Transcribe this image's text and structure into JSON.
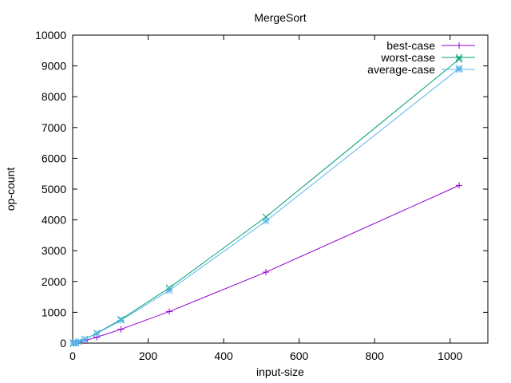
{
  "chart_data": {
    "type": "line",
    "title": "MergeSort",
    "xlabel": "input-size",
    "ylabel": "op-count",
    "xlim": [
      0,
      1100
    ],
    "ylim": [
      0,
      10000
    ],
    "xticks": [
      0,
      200,
      400,
      600,
      800,
      1000
    ],
    "yticks": [
      0,
      1000,
      2000,
      3000,
      4000,
      5000,
      6000,
      7000,
      8000,
      9000,
      10000
    ],
    "grid": false,
    "legend_position": "top-right",
    "x": [
      1,
      2,
      4,
      8,
      16,
      32,
      64,
      128,
      256,
      512,
      1024
    ],
    "series": [
      {
        "name": "best-case",
        "color": "#9400d3",
        "marker": "plus",
        "values": [
          0,
          1,
          4,
          12,
          32,
          80,
          192,
          448,
          1024,
          2304,
          5120
        ]
      },
      {
        "name": "worst-case",
        "color": "#009e73",
        "marker": "cross",
        "values": [
          0,
          1,
          5,
          17,
          49,
          129,
          321,
          769,
          1793,
          4097,
          9217
        ]
      },
      {
        "name": "average-case",
        "color": "#56b4e9",
        "marker": "star",
        "values": [
          0,
          1,
          5,
          16,
          47,
          124,
          310,
          740,
          1710,
          3960,
          8920
        ]
      }
    ]
  }
}
